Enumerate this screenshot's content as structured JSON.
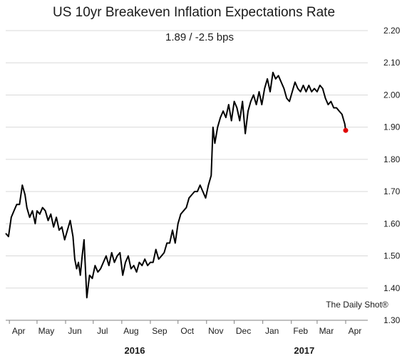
{
  "chart_data": {
    "type": "line",
    "title": "US 10yr Breakeven Inflation Expectations Rate",
    "subtitle": "1.89  /  -2.5 bps",
    "source": "The Daily Shot®",
    "ylim": [
      1.3,
      2.2
    ],
    "yticks": [
      "2.20",
      "2.10",
      "2.00",
      "1.90",
      "1.80",
      "1.70",
      "1.60",
      "1.50",
      "1.40",
      "1.30"
    ],
    "xlim": [
      "2016-03-28",
      "2017-04-25"
    ],
    "x_ticks": [
      {
        "label": "Apr",
        "date": "2016-04-01"
      },
      {
        "label": "May",
        "date": "2016-05-01"
      },
      {
        "label": "Jun",
        "date": "2016-06-01"
      },
      {
        "label": "Jul",
        "date": "2016-07-01"
      },
      {
        "label": "Aug",
        "date": "2016-08-01"
      },
      {
        "label": "Sep",
        "date": "2016-09-01"
      },
      {
        "label": "Oct",
        "date": "2016-10-01"
      },
      {
        "label": "Nov",
        "date": "2016-11-01"
      },
      {
        "label": "Dec",
        "date": "2016-12-01"
      },
      {
        "label": "Jan",
        "date": "2017-01-01"
      },
      {
        "label": "Feb",
        "date": "2017-02-01"
      },
      {
        "label": "Mar",
        "date": "2017-03-01"
      },
      {
        "label": "Apr",
        "date": "2017-04-01"
      }
    ],
    "year_labels": [
      {
        "label": "2016",
        "date": "2016-08-15"
      },
      {
        "label": "2017",
        "date": "2017-02-15"
      }
    ],
    "grid": true,
    "series": [
      {
        "color": "#000000",
        "last_point_color": "#e00000",
        "points": [
          [
            "2016-03-28",
            1.57
          ],
          [
            "2016-03-31",
            1.56
          ],
          [
            "2016-04-03",
            1.62
          ],
          [
            "2016-04-06",
            1.64
          ],
          [
            "2016-04-09",
            1.66
          ],
          [
            "2016-04-12",
            1.66
          ],
          [
            "2016-04-15",
            1.72
          ],
          [
            "2016-04-18",
            1.69
          ],
          [
            "2016-04-20",
            1.65
          ],
          [
            "2016-04-23",
            1.62
          ],
          [
            "2016-04-26",
            1.64
          ],
          [
            "2016-04-29",
            1.6
          ],
          [
            "2016-05-01",
            1.64
          ],
          [
            "2016-05-04",
            1.63
          ],
          [
            "2016-05-07",
            1.65
          ],
          [
            "2016-05-10",
            1.64
          ],
          [
            "2016-05-13",
            1.61
          ],
          [
            "2016-05-16",
            1.63
          ],
          [
            "2016-05-19",
            1.59
          ],
          [
            "2016-05-22",
            1.62
          ],
          [
            "2016-05-25",
            1.58
          ],
          [
            "2016-05-28",
            1.59
          ],
          [
            "2016-05-31",
            1.55
          ],
          [
            "2016-06-03",
            1.58
          ],
          [
            "2016-06-06",
            1.61
          ],
          [
            "2016-06-09",
            1.56
          ],
          [
            "2016-06-11",
            1.49
          ],
          [
            "2016-06-13",
            1.46
          ],
          [
            "2016-06-15",
            1.48
          ],
          [
            "2016-06-17",
            1.44
          ],
          [
            "2016-06-19",
            1.5
          ],
          [
            "2016-06-21",
            1.55
          ],
          [
            "2016-06-24",
            1.37
          ],
          [
            "2016-06-27",
            1.44
          ],
          [
            "2016-06-30",
            1.43
          ],
          [
            "2016-07-03",
            1.47
          ],
          [
            "2016-07-06",
            1.45
          ],
          [
            "2016-07-09",
            1.46
          ],
          [
            "2016-07-12",
            1.48
          ],
          [
            "2016-07-15",
            1.5
          ],
          [
            "2016-07-18",
            1.47
          ],
          [
            "2016-07-21",
            1.51
          ],
          [
            "2016-07-24",
            1.48
          ],
          [
            "2016-07-27",
            1.5
          ],
          [
            "2016-07-30",
            1.51
          ],
          [
            "2016-08-02",
            1.44
          ],
          [
            "2016-08-05",
            1.48
          ],
          [
            "2016-08-08",
            1.5
          ],
          [
            "2016-08-11",
            1.46
          ],
          [
            "2016-08-14",
            1.47
          ],
          [
            "2016-08-17",
            1.45
          ],
          [
            "2016-08-20",
            1.48
          ],
          [
            "2016-08-23",
            1.47
          ],
          [
            "2016-08-26",
            1.49
          ],
          [
            "2016-08-29",
            1.47
          ],
          [
            "2016-09-01",
            1.48
          ],
          [
            "2016-09-04",
            1.48
          ],
          [
            "2016-09-07",
            1.52
          ],
          [
            "2016-09-10",
            1.49
          ],
          [
            "2016-09-13",
            1.5
          ],
          [
            "2016-09-16",
            1.51
          ],
          [
            "2016-09-19",
            1.54
          ],
          [
            "2016-09-22",
            1.54
          ],
          [
            "2016-09-25",
            1.58
          ],
          [
            "2016-09-28",
            1.54
          ],
          [
            "2016-10-01",
            1.6
          ],
          [
            "2016-10-04",
            1.63
          ],
          [
            "2016-10-07",
            1.64
          ],
          [
            "2016-10-10",
            1.65
          ],
          [
            "2016-10-13",
            1.68
          ],
          [
            "2016-10-16",
            1.69
          ],
          [
            "2016-10-19",
            1.7
          ],
          [
            "2016-10-22",
            1.7
          ],
          [
            "2016-10-25",
            1.72
          ],
          [
            "2016-10-28",
            1.7
          ],
          [
            "2016-10-31",
            1.68
          ],
          [
            "2016-11-03",
            1.72
          ],
          [
            "2016-11-06",
            1.75
          ],
          [
            "2016-11-08",
            1.9
          ],
          [
            "2016-11-10",
            1.85
          ],
          [
            "2016-11-13",
            1.9
          ],
          [
            "2016-11-16",
            1.93
          ],
          [
            "2016-11-19",
            1.95
          ],
          [
            "2016-11-22",
            1.93
          ],
          [
            "2016-11-25",
            1.97
          ],
          [
            "2016-11-28",
            1.92
          ],
          [
            "2016-12-01",
            1.98
          ],
          [
            "2016-12-04",
            1.96
          ],
          [
            "2016-12-07",
            1.92
          ],
          [
            "2016-12-10",
            1.98
          ],
          [
            "2016-12-13",
            1.88
          ],
          [
            "2016-12-16",
            1.95
          ],
          [
            "2016-12-19",
            1.98
          ],
          [
            "2016-12-22",
            2.0
          ],
          [
            "2016-12-25",
            1.97
          ],
          [
            "2016-12-28",
            2.01
          ],
          [
            "2016-12-31",
            1.97
          ],
          [
            "2017-01-03",
            2.02
          ],
          [
            "2017-01-06",
            2.05
          ],
          [
            "2017-01-09",
            2.01
          ],
          [
            "2017-01-12",
            2.07
          ],
          [
            "2017-01-15",
            2.05
          ],
          [
            "2017-01-18",
            2.06
          ],
          [
            "2017-01-21",
            2.04
          ],
          [
            "2017-01-24",
            2.02
          ],
          [
            "2017-01-27",
            1.99
          ],
          [
            "2017-01-30",
            1.98
          ],
          [
            "2017-02-02",
            2.01
          ],
          [
            "2017-02-05",
            2.04
          ],
          [
            "2017-02-08",
            2.02
          ],
          [
            "2017-02-11",
            2.01
          ],
          [
            "2017-02-14",
            2.03
          ],
          [
            "2017-02-17",
            2.01
          ],
          [
            "2017-02-20",
            2.03
          ],
          [
            "2017-02-23",
            2.01
          ],
          [
            "2017-02-26",
            2.02
          ],
          [
            "2017-03-01",
            2.01
          ],
          [
            "2017-03-04",
            2.03
          ],
          [
            "2017-03-07",
            2.02
          ],
          [
            "2017-03-10",
            1.99
          ],
          [
            "2017-03-13",
            1.97
          ],
          [
            "2017-03-16",
            1.98
          ],
          [
            "2017-03-19",
            1.96
          ],
          [
            "2017-03-22",
            1.96
          ],
          [
            "2017-03-25",
            1.95
          ],
          [
            "2017-03-28",
            1.94
          ],
          [
            "2017-03-31",
            1.91
          ],
          [
            "2017-04-01",
            1.89
          ]
        ]
      }
    ]
  }
}
